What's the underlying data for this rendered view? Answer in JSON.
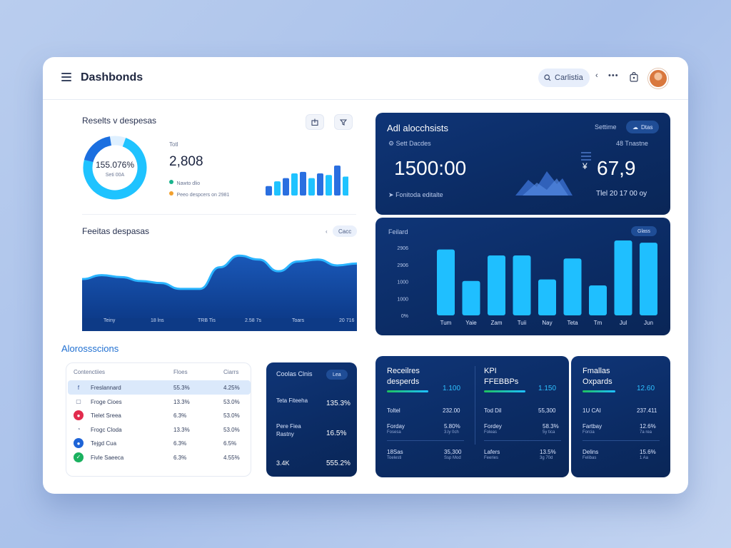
{
  "header": {
    "title": "Dashbonds",
    "search_label": "Carlistia"
  },
  "top_left": {
    "title": "Reselts v despesas",
    "donut_value": "155.076%",
    "donut_sub": "Seti 00A",
    "total_label": "Totl",
    "total_value": "2,808",
    "legend": [
      {
        "text": "Nawto dlio",
        "color": "#19b38d"
      },
      {
        "text": "Peeo despcers on 2981",
        "color": "#f1a02e"
      }
    ],
    "bars": [
      12,
      18,
      22,
      28,
      30,
      22,
      28,
      26,
      38,
      24
    ]
  },
  "mid_left": {
    "title": "Feeitas despasas",
    "pill": "Cacc",
    "x_labels": [
      "Teiny",
      "18 lns",
      "TRB Tis",
      "2.58 7s",
      "Toars",
      "20 716"
    ],
    "series": [
      40,
      44,
      42,
      38,
      36,
      30,
      30,
      52,
      64,
      60,
      48,
      58,
      60,
      54,
      56
    ]
  },
  "analytics": {
    "title": "Adl alocchsists",
    "pill_left": "Settime",
    "pill_right": "Dtas",
    "sub_left": "Sett Dacdes",
    "sub_right": "48 Tnastne",
    "big_left": "1500:00",
    "big_right": "67,9",
    "big_right_prefix": "¥",
    "foot_left": "Fonitoda editalte",
    "foot_right": "Tlel 20 17 00 oy"
  },
  "bars_card": {
    "title": "Feilard",
    "pill": "Glass",
    "y_labels": [
      "2906",
      "2906",
      "1000",
      "1000",
      "0%"
    ],
    "categories": [
      "Tum",
      "Yaie",
      "Zam",
      "Tuii",
      "Nay",
      "Teta",
      "Tm",
      "Jul",
      "Jun"
    ],
    "values": [
      88,
      46,
      80,
      80,
      48,
      76,
      40,
      100,
      97
    ]
  },
  "section": {
    "title": "Alorossscions"
  },
  "table": {
    "headers": [
      "Contenctiies",
      "Floes",
      "Ciarrs"
    ],
    "rows": [
      {
        "name": "Freslannard",
        "v1": "55.3%",
        "v2": "4.25%",
        "icon": "facebook-icon",
        "glyph": "f",
        "color": "#3b5998",
        "bg": "transparent",
        "sel": true
      },
      {
        "name": "Froge Cioes",
        "v1": "13.3%",
        "v2": "53.0%",
        "icon": "bag-icon",
        "glyph": "▢",
        "color": "#6a7693",
        "bg": "transparent",
        "sel": false
      },
      {
        "name": "Tielet Sreea",
        "v1": "6.3%",
        "v2": "53.0%",
        "icon": "red-circle-icon",
        "glyph": "●",
        "color": "#fff",
        "bg": "#e22b4d",
        "sel": false
      },
      {
        "name": "Frogc Cloda",
        "v1": "13.3%",
        "v2": "53.0%",
        "icon": "user-icon",
        "glyph": "◔",
        "color": "#6a7693",
        "bg": "transparent",
        "sel": false
      },
      {
        "name": "Tejgd Cua",
        "v1": "6.3%",
        "v2": "6.5%",
        "icon": "blue-circle-icon",
        "glyph": "●",
        "color": "#fff",
        "bg": "#1e64d7",
        "sel": false
      },
      {
        "name": "Fivle Saeeca",
        "v1": "6.3%",
        "v2": "4.55%",
        "icon": "check-icon",
        "glyph": "✓",
        "color": "#fff",
        "bg": "#1bb15f",
        "sel": false
      }
    ]
  },
  "small_card": {
    "title": "Coolas Clnis",
    "pill": "Lea",
    "rows": [
      {
        "label": "Teta Fiteeha",
        "value": "135.3%"
      },
      {
        "label": "Pere Fiea Rastny",
        "value": "16.5%"
      },
      {
        "label": "3.4K",
        "value": "555.2%"
      }
    ]
  },
  "card_a": {
    "col1_title": "Receilres desperds",
    "col1_num": "1.100",
    "col2_title": "KPI FFEBBPs",
    "col2_num": "1.150",
    "rows": [
      {
        "l": "Toltel",
        "v": "232.00",
        "l2": "Tod Dil",
        "v2": "55,300"
      },
      {
        "l": "Forday",
        "s": "Fosesa",
        "v": "5.80%",
        "vs": "3.ly 0ch",
        "l2": "Fordey",
        "s2": "Foleas",
        "v2": "58.3%",
        "vs2": "5y tica"
      },
      {
        "l": "18Sas",
        "s": "Toelesti",
        "v": "35,300",
        "vs": "Ssp Mod",
        "l2": "Lafers",
        "s2": "Feeries",
        "v2": "13.5%",
        "vs2": "3g 70d"
      }
    ]
  },
  "card_b": {
    "title": "Fmallas Oxpards",
    "num": "12.60",
    "rows": [
      {
        "l": "1U CAI",
        "v": "237.411"
      },
      {
        "l": "Fartbay",
        "s": "Forcia",
        "v": "12.6%",
        "vs": "7a rea"
      },
      {
        "l": "Delins",
        "s": "Felibas",
        "v": "15.6%",
        "vs": "1 Aa"
      }
    ]
  },
  "colors": {
    "accent": "#1e8cf0",
    "dark": "#0c2c66",
    "cyan": "#1ec0ff"
  }
}
